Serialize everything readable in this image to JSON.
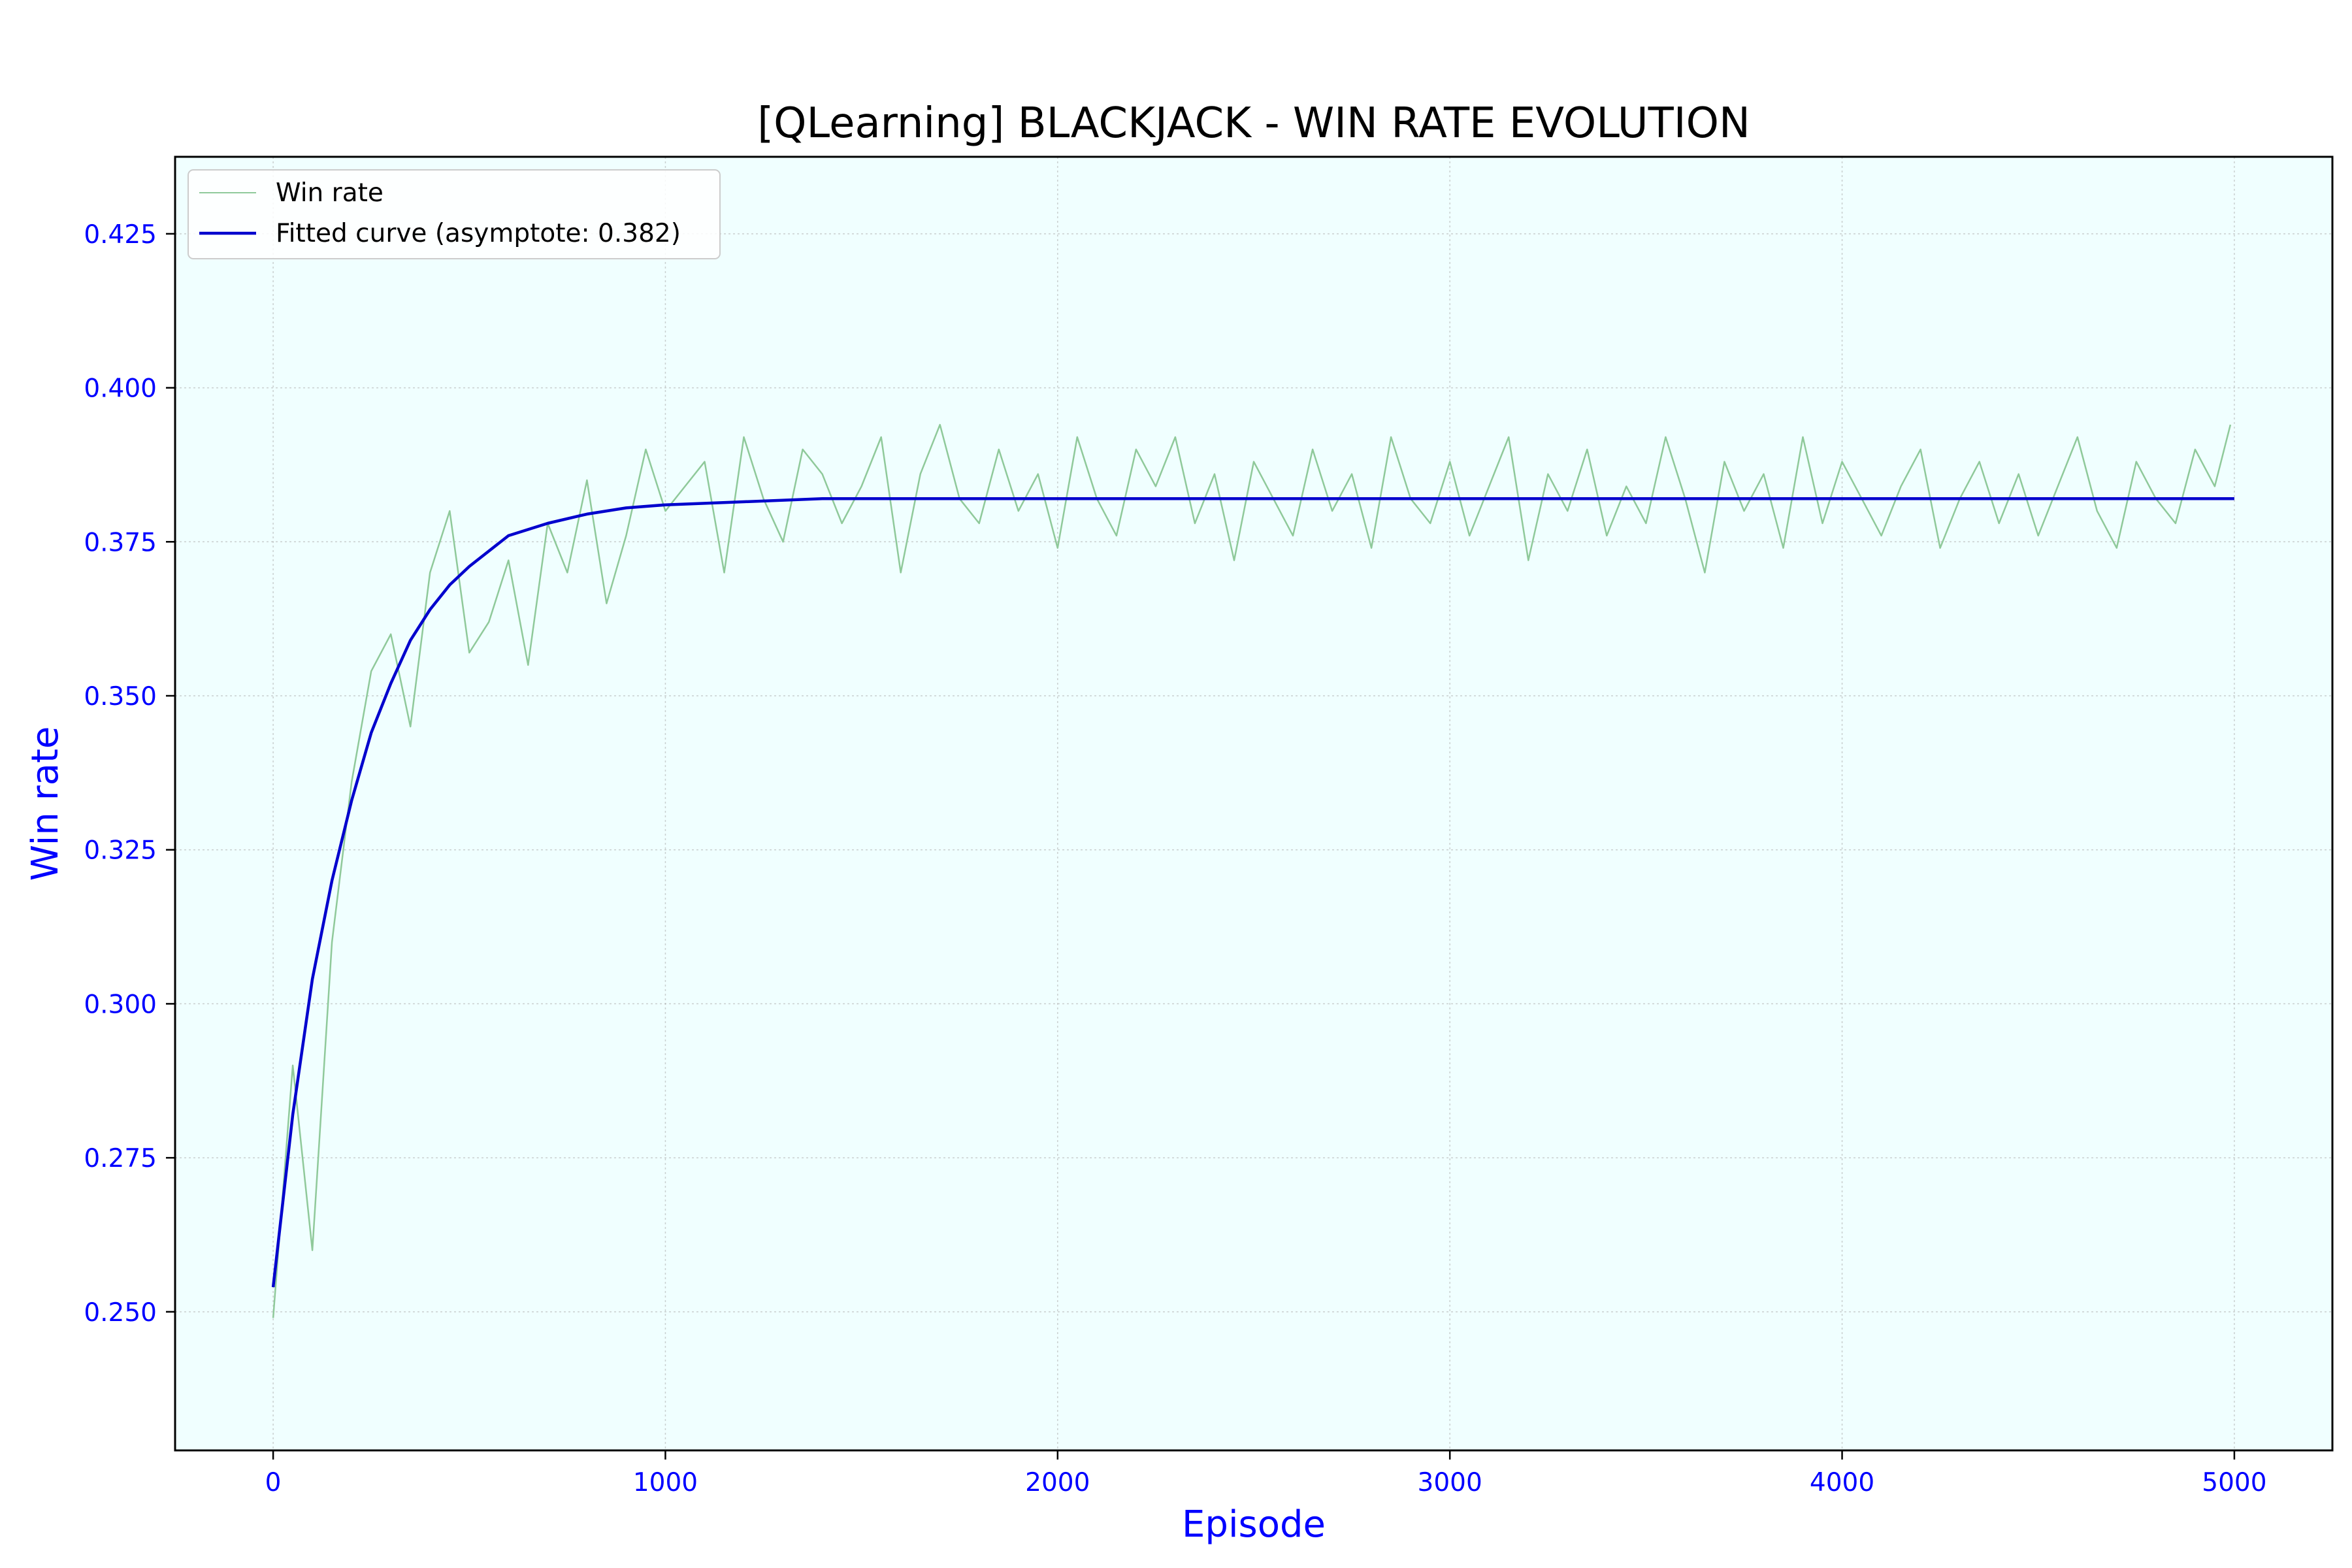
{
  "chart_data": {
    "type": "line",
    "title": "[QLearning] BLACKJACK - WIN RATE EVOLUTION",
    "xlabel": "Episode",
    "ylabel": "Win rate",
    "xlim": [
      -250,
      5250
    ],
    "ylim": [
      0.2275,
      0.4375
    ],
    "x_ticks": [
      0,
      1000,
      2000,
      3000,
      4000,
      5000
    ],
    "x_tick_labels": [
      "0",
      "1000",
      "2000",
      "3000",
      "4000",
      "5000"
    ],
    "y_ticks": [
      0.25,
      0.275,
      0.3,
      0.325,
      0.35,
      0.375,
      0.4,
      0.425
    ],
    "y_tick_labels": [
      "0.250",
      "0.275",
      "0.300",
      "0.325",
      "0.350",
      "0.375",
      "0.400",
      "0.425"
    ],
    "grid": true,
    "legend_position": "top-left",
    "colors": {
      "background": "#f0ffff",
      "axis_label": "#0000ff",
      "raw_series": "#8fc99a",
      "fit_series": "#0000cd"
    },
    "series": [
      {
        "name": "Win rate",
        "style": "thin-green-line",
        "x": [
          0,
          50,
          100,
          150,
          200,
          250,
          300,
          350,
          400,
          450,
          500,
          550,
          600,
          650,
          700,
          750,
          800,
          850,
          900,
          950,
          1000,
          1050,
          1100,
          1150,
          1200,
          1250,
          1300,
          1350,
          1400,
          1450,
          1500,
          1550,
          1600,
          1650,
          1700,
          1750,
          1800,
          1850,
          1900,
          1950,
          2000,
          2050,
          2100,
          2150,
          2200,
          2250,
          2300,
          2350,
          2400,
          2450,
          2500,
          2550,
          2600,
          2650,
          2700,
          2750,
          2800,
          2850,
          2900,
          2950,
          3000,
          3050,
          3100,
          3150,
          3200,
          3250,
          3300,
          3350,
          3400,
          3450,
          3500,
          3550,
          3600,
          3650,
          3700,
          3750,
          3800,
          3850,
          3900,
          3950,
          4000,
          4050,
          4100,
          4150,
          4200,
          4250,
          4300,
          4350,
          4400,
          4450,
          4500,
          4550,
          4600,
          4650,
          4700,
          4750,
          4800,
          4850,
          4900,
          4950,
          4990
        ],
        "values": [
          0.249,
          0.29,
          0.26,
          0.31,
          0.336,
          0.354,
          0.36,
          0.345,
          0.37,
          0.38,
          0.357,
          0.362,
          0.372,
          0.355,
          0.378,
          0.37,
          0.385,
          0.365,
          0.376,
          0.39,
          0.38,
          0.384,
          0.388,
          0.37,
          0.392,
          0.382,
          0.375,
          0.39,
          0.386,
          0.378,
          0.384,
          0.392,
          0.37,
          0.386,
          0.394,
          0.382,
          0.378,
          0.39,
          0.38,
          0.386,
          0.374,
          0.392,
          0.382,
          0.376,
          0.39,
          0.384,
          0.392,
          0.378,
          0.386,
          0.372,
          0.388,
          0.382,
          0.376,
          0.39,
          0.38,
          0.386,
          0.374,
          0.392,
          0.382,
          0.378,
          0.388,
          0.376,
          0.384,
          0.392,
          0.372,
          0.386,
          0.38,
          0.39,
          0.376,
          0.384,
          0.378,
          0.392,
          0.382,
          0.37,
          0.388,
          0.38,
          0.386,
          0.374,
          0.392,
          0.378,
          0.388,
          0.382,
          0.376,
          0.384,
          0.39,
          0.374,
          0.382,
          0.388,
          0.378,
          0.386,
          0.376,
          0.384,
          0.392,
          0.38,
          0.374,
          0.388,
          0.382,
          0.378,
          0.39,
          0.384,
          0.394
        ]
      },
      {
        "name": "Fitted curve (asymptote: 0.382)",
        "style": "thick-blue-line",
        "x": [
          0,
          50,
          100,
          150,
          200,
          250,
          300,
          350,
          400,
          450,
          500,
          600,
          700,
          800,
          900,
          1000,
          1200,
          1400,
          1600,
          2000,
          3000,
          4000,
          5000
        ],
        "values": [
          0.254,
          0.282,
          0.304,
          0.32,
          0.333,
          0.344,
          0.352,
          0.359,
          0.364,
          0.368,
          0.371,
          0.376,
          0.378,
          0.3795,
          0.3805,
          0.381,
          0.3815,
          0.382,
          0.382,
          0.382,
          0.382,
          0.382,
          0.382
        ]
      }
    ]
  }
}
